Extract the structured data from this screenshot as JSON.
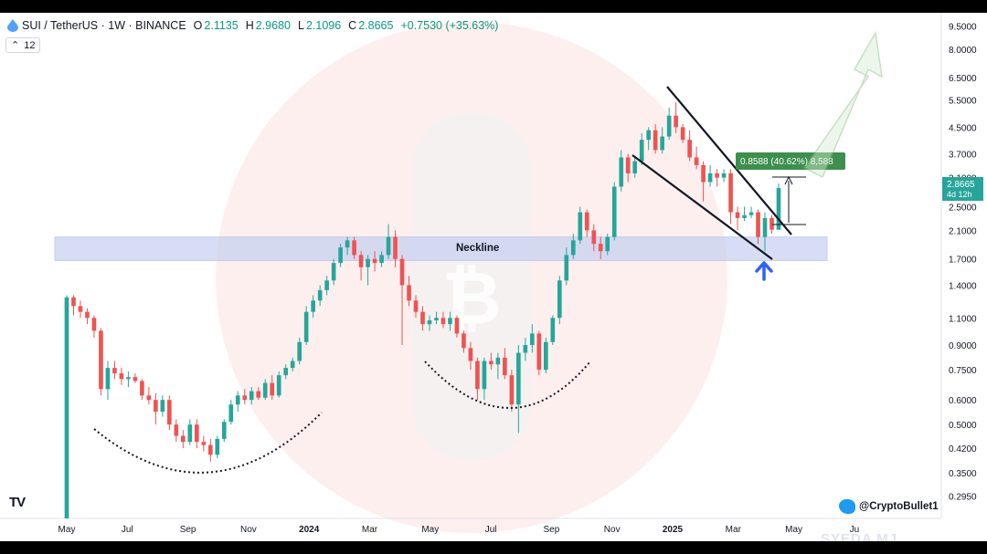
{
  "header": {
    "symbol": "SUI / TetherUS · 1W · BINANCE",
    "open_label": "O",
    "open": "2.1135",
    "high_label": "H",
    "high": "2.9680",
    "low_label": "L",
    "low": "2.1096",
    "close_label": "C",
    "close": "2.8665",
    "change": "+0.7530 (+35.63%)",
    "indicator_count": "12"
  },
  "annotations": {
    "neckline": "Neckline",
    "measure_box": "0.8588 (40.62%) 8,588",
    "price_tag": "2.8665",
    "countdown": "4d 12h",
    "twitter_handle": "@CryptoBullet1",
    "tv_logo": "TV",
    "watermark": "SYEDA MJ"
  },
  "colors": {
    "up": "#26a69a",
    "down": "#ef5350",
    "neckline_band": "#c5d0f0",
    "measure_green": "#3c8f4c",
    "arrow_blue": "#2962ff"
  },
  "chart_data": {
    "type": "candlestick",
    "y_scale": "log",
    "ylim": [
      0.25,
      10.2
    ],
    "y_ticks": [
      "9.5000",
      "8.0000",
      "6.5000",
      "5.5000",
      "4.5000",
      "3.7000",
      "3.1000",
      "2.5000",
      "2.1000",
      "1.7000",
      "1.4000",
      "1.1000",
      "0.9000",
      "0.7500",
      "0.6000",
      "0.5000",
      "0.4200",
      "0.3500",
      "0.2950"
    ],
    "x_ticks": [
      "May",
      "Jul",
      "Sep",
      "Nov",
      "2024",
      "Mar",
      "May",
      "Jul",
      "Sep",
      "Nov",
      "2025",
      "Mar",
      "May",
      "Ju"
    ],
    "neckline_range": [
      1.68,
      2.0
    ],
    "candles": [
      {
        "o": 0.25,
        "h": 1.3,
        "l": 0.25,
        "c": 1.28
      },
      {
        "o": 1.28,
        "h": 1.3,
        "l": 1.12,
        "c": 1.2
      },
      {
        "o": 1.2,
        "h": 1.25,
        "l": 1.1,
        "c": 1.15
      },
      {
        "o": 1.15,
        "h": 1.18,
        "l": 1.05,
        "c": 1.1
      },
      {
        "o": 1.1,
        "h": 1.12,
        "l": 0.95,
        "c": 1.0
      },
      {
        "o": 1.0,
        "h": 1.02,
        "l": 0.62,
        "c": 0.65
      },
      {
        "o": 0.65,
        "h": 0.8,
        "l": 0.6,
        "c": 0.76
      },
      {
        "o": 0.76,
        "h": 0.8,
        "l": 0.7,
        "c": 0.73
      },
      {
        "o": 0.73,
        "h": 0.76,
        "l": 0.67,
        "c": 0.7
      },
      {
        "o": 0.7,
        "h": 0.74,
        "l": 0.66,
        "c": 0.71
      },
      {
        "o": 0.71,
        "h": 0.73,
        "l": 0.68,
        "c": 0.69
      },
      {
        "o": 0.69,
        "h": 0.7,
        "l": 0.6,
        "c": 0.62
      },
      {
        "o": 0.62,
        "h": 0.66,
        "l": 0.58,
        "c": 0.6
      },
      {
        "o": 0.6,
        "h": 0.63,
        "l": 0.5,
        "c": 0.55
      },
      {
        "o": 0.55,
        "h": 0.62,
        "l": 0.53,
        "c": 0.6
      },
      {
        "o": 0.6,
        "h": 0.62,
        "l": 0.48,
        "c": 0.5
      },
      {
        "o": 0.5,
        "h": 0.52,
        "l": 0.44,
        "c": 0.46
      },
      {
        "o": 0.46,
        "h": 0.48,
        "l": 0.42,
        "c": 0.44
      },
      {
        "o": 0.44,
        "h": 0.52,
        "l": 0.43,
        "c": 0.5
      },
      {
        "o": 0.5,
        "h": 0.52,
        "l": 0.42,
        "c": 0.44
      },
      {
        "o": 0.44,
        "h": 0.46,
        "l": 0.41,
        "c": 0.43
      },
      {
        "o": 0.43,
        "h": 0.45,
        "l": 0.38,
        "c": 0.4
      },
      {
        "o": 0.4,
        "h": 0.46,
        "l": 0.39,
        "c": 0.45
      },
      {
        "o": 0.45,
        "h": 0.52,
        "l": 0.44,
        "c": 0.51
      },
      {
        "o": 0.51,
        "h": 0.6,
        "l": 0.5,
        "c": 0.58
      },
      {
        "o": 0.58,
        "h": 0.64,
        "l": 0.55,
        "c": 0.62
      },
      {
        "o": 0.62,
        "h": 0.65,
        "l": 0.58,
        "c": 0.6
      },
      {
        "o": 0.6,
        "h": 0.66,
        "l": 0.58,
        "c": 0.64
      },
      {
        "o": 0.64,
        "h": 0.66,
        "l": 0.6,
        "c": 0.61
      },
      {
        "o": 0.61,
        "h": 0.7,
        "l": 0.6,
        "c": 0.68
      },
      {
        "o": 0.68,
        "h": 0.72,
        "l": 0.6,
        "c": 0.62
      },
      {
        "o": 0.62,
        "h": 0.74,
        "l": 0.61,
        "c": 0.72
      },
      {
        "o": 0.72,
        "h": 0.78,
        "l": 0.7,
        "c": 0.76
      },
      {
        "o": 0.76,
        "h": 0.82,
        "l": 0.74,
        "c": 0.8
      },
      {
        "o": 0.8,
        "h": 0.95,
        "l": 0.78,
        "c": 0.92
      },
      {
        "o": 0.92,
        "h": 1.2,
        "l": 0.9,
        "c": 1.15
      },
      {
        "o": 1.15,
        "h": 1.3,
        "l": 1.1,
        "c": 1.25
      },
      {
        "o": 1.25,
        "h": 1.4,
        "l": 1.2,
        "c": 1.35
      },
      {
        "o": 1.35,
        "h": 1.5,
        "l": 1.3,
        "c": 1.45
      },
      {
        "o": 1.45,
        "h": 1.7,
        "l": 1.4,
        "c": 1.65
      },
      {
        "o": 1.65,
        "h": 1.9,
        "l": 1.6,
        "c": 1.85
      },
      {
        "o": 1.85,
        "h": 2.0,
        "l": 1.75,
        "c": 1.95
      },
      {
        "o": 1.95,
        "h": 2.0,
        "l": 1.7,
        "c": 1.75
      },
      {
        "o": 1.75,
        "h": 1.8,
        "l": 1.45,
        "c": 1.6
      },
      {
        "o": 1.6,
        "h": 1.75,
        "l": 1.4,
        "c": 1.7
      },
      {
        "o": 1.7,
        "h": 1.8,
        "l": 1.55,
        "c": 1.65
      },
      {
        "o": 1.65,
        "h": 1.8,
        "l": 1.6,
        "c": 1.75
      },
      {
        "o": 1.75,
        "h": 2.2,
        "l": 1.7,
        "c": 2.0
      },
      {
        "o": 2.0,
        "h": 2.1,
        "l": 1.6,
        "c": 1.7
      },
      {
        "o": 1.7,
        "h": 1.75,
        "l": 0.9,
        "c": 1.4
      },
      {
        "o": 1.4,
        "h": 1.5,
        "l": 1.2,
        "c": 1.25
      },
      {
        "o": 1.25,
        "h": 1.3,
        "l": 1.1,
        "c": 1.15
      },
      {
        "o": 1.15,
        "h": 1.2,
        "l": 1.0,
        "c": 1.05
      },
      {
        "o": 1.05,
        "h": 1.12,
        "l": 1.0,
        "c": 1.08
      },
      {
        "o": 1.08,
        "h": 1.15,
        "l": 1.05,
        "c": 1.1
      },
      {
        "o": 1.1,
        "h": 1.15,
        "l": 1.02,
        "c": 1.05
      },
      {
        "o": 1.05,
        "h": 1.15,
        "l": 1.0,
        "c": 1.1
      },
      {
        "o": 1.1,
        "h": 1.12,
        "l": 0.95,
        "c": 0.98
      },
      {
        "o": 0.98,
        "h": 1.0,
        "l": 0.85,
        "c": 0.88
      },
      {
        "o": 0.88,
        "h": 0.92,
        "l": 0.75,
        "c": 0.8
      },
      {
        "o": 0.8,
        "h": 0.82,
        "l": 0.6,
        "c": 0.65
      },
      {
        "o": 0.65,
        "h": 0.82,
        "l": 0.6,
        "c": 0.8
      },
      {
        "o": 0.8,
        "h": 0.85,
        "l": 0.75,
        "c": 0.78
      },
      {
        "o": 0.78,
        "h": 0.85,
        "l": 0.7,
        "c": 0.82
      },
      {
        "o": 0.82,
        "h": 0.88,
        "l": 0.7,
        "c": 0.72
      },
      {
        "o": 0.72,
        "h": 0.75,
        "l": 0.55,
        "c": 0.58
      },
      {
        "o": 0.58,
        "h": 0.9,
        "l": 0.47,
        "c": 0.85
      },
      {
        "o": 0.85,
        "h": 0.95,
        "l": 0.8,
        "c": 0.9
      },
      {
        "o": 0.9,
        "h": 1.05,
        "l": 0.85,
        "c": 0.98
      },
      {
        "o": 0.98,
        "h": 1.0,
        "l": 0.72,
        "c": 0.75
      },
      {
        "o": 0.75,
        "h": 0.95,
        "l": 0.73,
        "c": 0.92
      },
      {
        "o": 0.92,
        "h": 1.12,
        "l": 0.9,
        "c": 1.1
      },
      {
        "o": 1.1,
        "h": 1.5,
        "l": 1.05,
        "c": 1.45
      },
      {
        "o": 1.45,
        "h": 1.85,
        "l": 1.4,
        "c": 1.75
      },
      {
        "o": 1.75,
        "h": 2.05,
        "l": 1.7,
        "c": 1.95
      },
      {
        "o": 1.95,
        "h": 2.5,
        "l": 1.9,
        "c": 2.4
      },
      {
        "o": 2.4,
        "h": 2.45,
        "l": 2.0,
        "c": 2.1
      },
      {
        "o": 2.1,
        "h": 2.2,
        "l": 1.8,
        "c": 1.9
      },
      {
        "o": 1.9,
        "h": 2.0,
        "l": 1.7,
        "c": 1.8
      },
      {
        "o": 1.8,
        "h": 2.05,
        "l": 1.75,
        "c": 2.0
      },
      {
        "o": 2.0,
        "h": 3.0,
        "l": 1.95,
        "c": 2.9
      },
      {
        "o": 2.9,
        "h": 3.8,
        "l": 2.8,
        "c": 3.6
      },
      {
        "o": 3.6,
        "h": 3.7,
        "l": 3.0,
        "c": 3.2
      },
      {
        "o": 3.2,
        "h": 3.6,
        "l": 3.1,
        "c": 3.5
      },
      {
        "o": 3.5,
        "h": 4.3,
        "l": 3.4,
        "c": 4.1
      },
      {
        "o": 4.1,
        "h": 4.5,
        "l": 3.8,
        "c": 4.4
      },
      {
        "o": 4.4,
        "h": 4.6,
        "l": 3.7,
        "c": 3.8
      },
      {
        "o": 3.8,
        "h": 4.5,
        "l": 3.7,
        "c": 4.2
      },
      {
        "o": 4.2,
        "h": 5.2,
        "l": 4.1,
        "c": 4.9
      },
      {
        "o": 4.9,
        "h": 5.4,
        "l": 4.3,
        "c": 4.5
      },
      {
        "o": 4.5,
        "h": 4.6,
        "l": 4.0,
        "c": 4.1
      },
      {
        "o": 4.1,
        "h": 4.4,
        "l": 3.5,
        "c": 3.6
      },
      {
        "o": 3.6,
        "h": 3.9,
        "l": 3.3,
        "c": 3.4
      },
      {
        "o": 3.4,
        "h": 3.5,
        "l": 2.6,
        "c": 3.0
      },
      {
        "o": 3.0,
        "h": 3.4,
        "l": 2.9,
        "c": 3.2
      },
      {
        "o": 3.2,
        "h": 3.3,
        "l": 2.9,
        "c": 3.1
      },
      {
        "o": 3.1,
        "h": 3.3,
        "l": 3.0,
        "c": 3.2
      },
      {
        "o": 3.2,
        "h": 3.3,
        "l": 2.2,
        "c": 2.4
      },
      {
        "o": 2.4,
        "h": 2.5,
        "l": 2.1,
        "c": 2.3
      },
      {
        "o": 2.3,
        "h": 2.5,
        "l": 2.25,
        "c": 2.35
      },
      {
        "o": 2.35,
        "h": 2.5,
        "l": 2.3,
        "c": 2.4
      },
      {
        "o": 2.4,
        "h": 2.45,
        "l": 1.9,
        "c": 2.0
      },
      {
        "o": 2.0,
        "h": 2.4,
        "l": 1.8,
        "c": 2.3
      },
      {
        "o": 2.3,
        "h": 2.35,
        "l": 2.05,
        "c": 2.11
      },
      {
        "o": 2.11,
        "h": 2.97,
        "l": 2.11,
        "c": 2.87
      }
    ]
  }
}
